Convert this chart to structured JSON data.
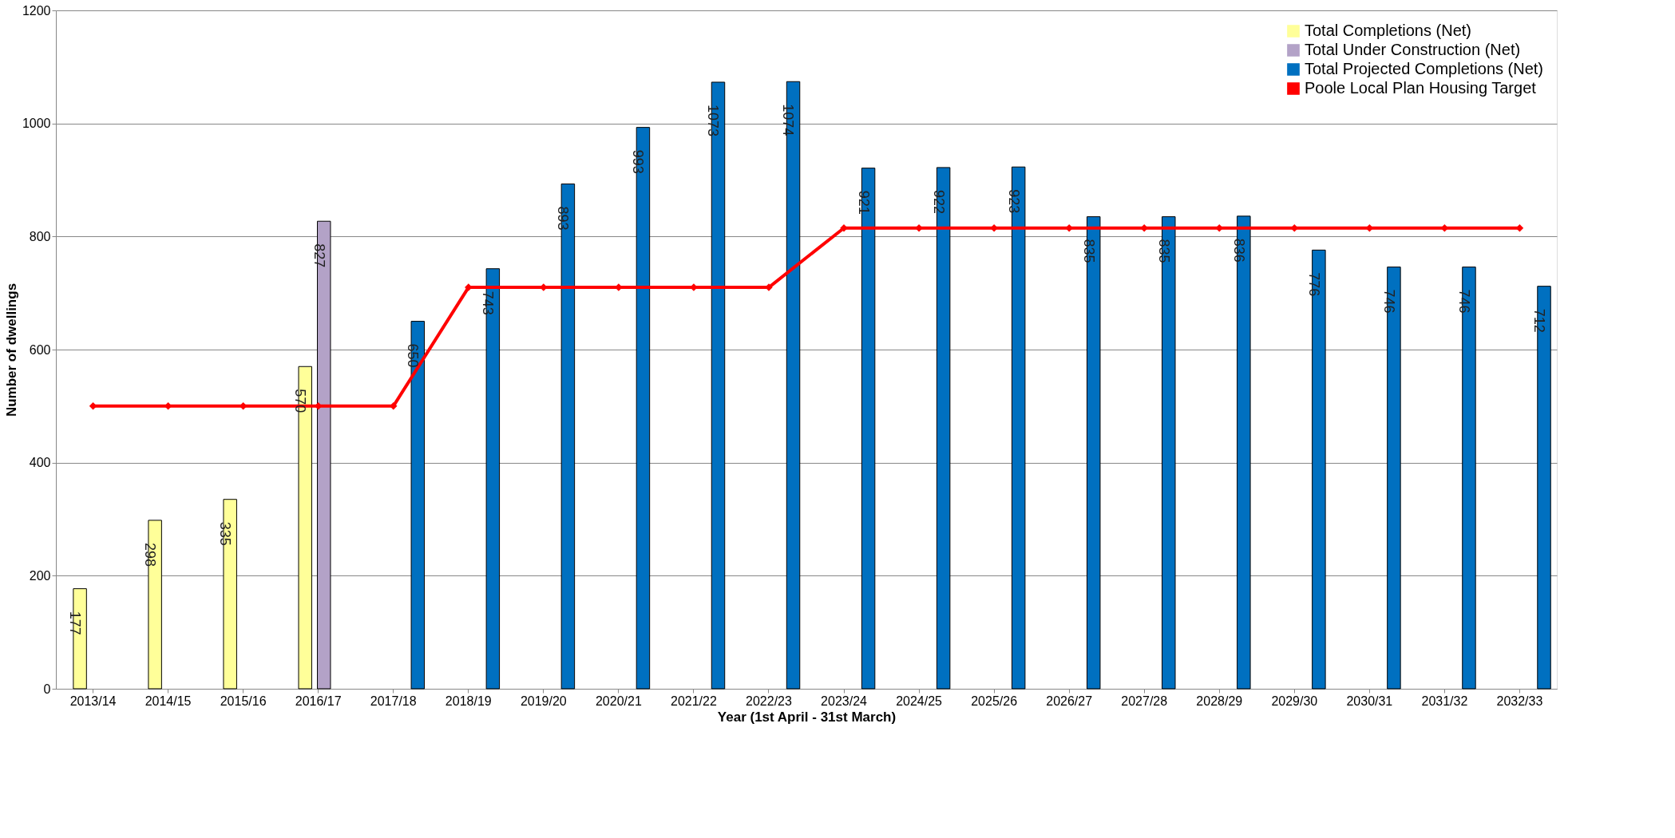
{
  "chart_data": {
    "type": "bar",
    "xlabel": "Year (1st April - 31st March)",
    "ylabel": "Number of dwellings",
    "categories": [
      "2013/14",
      "2014/15",
      "2015/16",
      "2016/17",
      "2017/18",
      "2018/19",
      "2019/20",
      "2020/21",
      "2021/22",
      "2022/23",
      "2023/24",
      "2024/25",
      "2025/26",
      "2026/27",
      "2027/28",
      "2028/29",
      "2029/30",
      "2030/31",
      "2031/32",
      "2032/33"
    ],
    "series": [
      {
        "name": "Total Completions (Net)",
        "color": "#ffff99",
        "values": [
          177,
          298,
          335,
          570,
          null,
          null,
          null,
          null,
          null,
          null,
          null,
          null,
          null,
          null,
          null,
          null,
          null,
          null,
          null,
          null
        ],
        "value_labels": [
          "177",
          "298",
          "335",
          "570",
          null,
          null,
          null,
          null,
          null,
          null,
          null,
          null,
          null,
          null,
          null,
          null,
          null,
          null,
          null,
          null
        ]
      },
      {
        "name": "Total Under Construction (Net)",
        "color": "#b3a2c7",
        "values": [
          null,
          null,
          null,
          827,
          null,
          null,
          null,
          null,
          null,
          null,
          null,
          null,
          null,
          null,
          null,
          null,
          null,
          null,
          null,
          null
        ],
        "value_labels": [
          null,
          null,
          null,
          "827",
          null,
          null,
          null,
          null,
          null,
          null,
          null,
          null,
          null,
          null,
          null,
          null,
          null,
          null,
          null,
          null
        ]
      },
      {
        "name": "Total Projected Completions (Net)",
        "color": "#0070c0",
        "values": [
          null,
          null,
          null,
          null,
          650,
          743,
          893,
          993,
          1073,
          1074,
          921,
          922,
          923,
          835,
          835,
          836,
          776,
          746,
          746,
          712
        ],
        "value_labels": [
          null,
          null,
          null,
          null,
          "650",
          "743",
          "893",
          "993",
          "1073",
          "1074",
          "921",
          "922",
          "923",
          "835",
          "835",
          "836",
          "776",
          "746",
          "746",
          "712"
        ]
      },
      {
        "name": "Poole Local Plan Housing Target",
        "type": "line",
        "color": "#ff0000",
        "marker": "diamond",
        "line_style": "solid",
        "values": [
          500,
          500,
          500,
          500,
          500,
          710,
          710,
          710,
          710,
          710,
          815,
          815,
          815,
          815,
          815,
          815,
          815,
          815,
          815,
          815
        ]
      }
    ],
    "ylim": [
      0,
      1200
    ],
    "yticks": [
      0,
      200,
      400,
      600,
      800,
      1000,
      1200
    ],
    "grid": "y",
    "legend": "top right"
  }
}
